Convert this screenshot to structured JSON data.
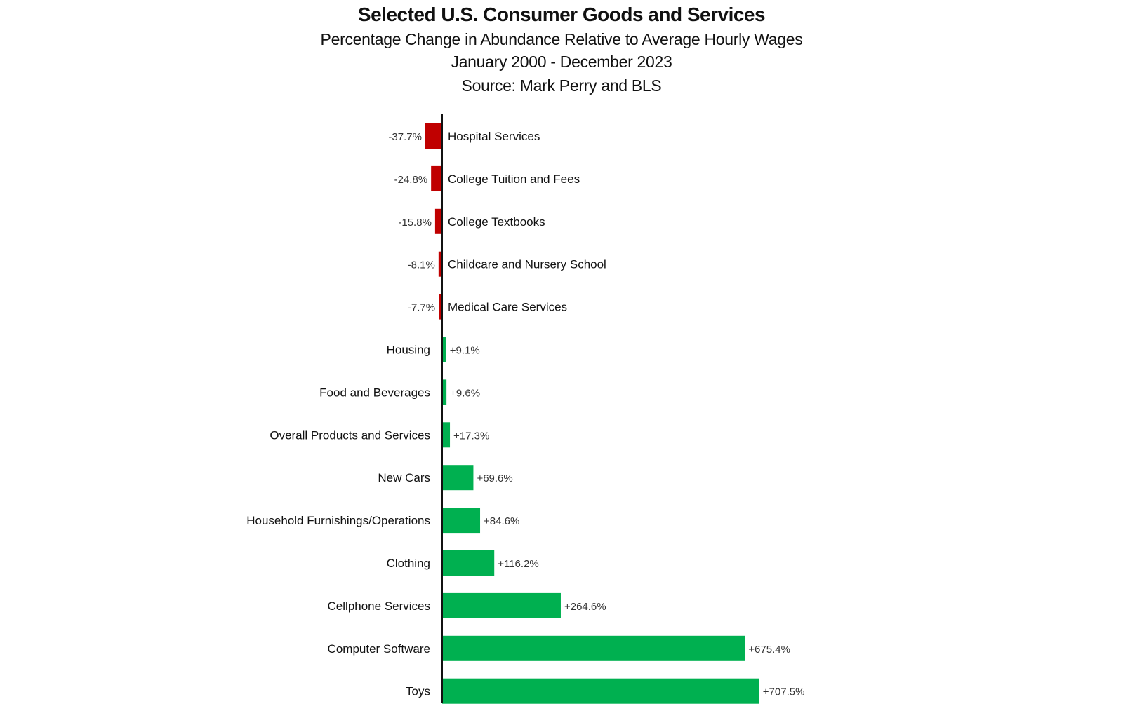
{
  "chart_data": {
    "type": "bar",
    "orientation": "horizontal",
    "title": "Selected U.S. Consumer Goods and Services",
    "subtitle": "Percentage Change in Abundance Relative to Average Hourly Wages",
    "date_range": "January 2000  -  December 2023",
    "source": "Source: Mark Perry and BLS",
    "categories": [
      "Hospital Services",
      "College Tuition and Fees",
      "College Textbooks",
      "Childcare and Nursery School",
      "Medical Care Services",
      "Housing",
      "Food and Beverages",
      "Overall Products and Services",
      "New Cars",
      "Household Furnishings/Operations",
      "Clothing",
      "Cellphone Services",
      "Computer Software",
      "Toys"
    ],
    "values": [
      -37.7,
      -24.8,
      -15.8,
      -8.1,
      -7.7,
      9.1,
      9.6,
      17.3,
      69.6,
      84.6,
      116.2,
      264.6,
      675.4,
      707.5
    ],
    "data_labels": [
      "-37.7%",
      "-24.8%",
      "-15.8%",
      "-8.1%",
      "-7.7%",
      "+9.1%",
      "+9.6%",
      "+17.3%",
      "+69.6%",
      "+84.6%",
      "+116.2%",
      "+264.6%",
      "+675.4%",
      "+707.5%"
    ],
    "colors": {
      "negative": "#c00000",
      "positive": "#00b050",
      "axis": "#111111"
    },
    "xlabel": "",
    "ylabel": "",
    "grid": false,
    "legend": "none"
  }
}
